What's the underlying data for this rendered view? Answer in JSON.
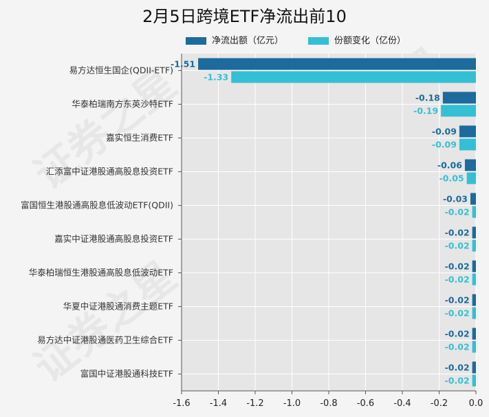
{
  "chart_data": {
    "type": "bar",
    "orientation": "horizontal",
    "title": "2月5日跨境ETF净流出前10",
    "categories": [
      "易方达恒生国企(QDII-ETF)",
      "华泰柏瑞南方东英沙特ETF",
      "嘉实恒生消费ETF",
      "汇添富中证港股通高股息投资ETF",
      "富国恒生港股通高股息低波动ETF(QDII)",
      "嘉实中证港股通高股息投资ETF",
      "华泰柏瑞恒生港股通高股息低波动ETF",
      "华夏中证港股通消费主题ETF",
      "易方达中证港股通医药卫生综合ETF",
      "富国中证港股通科技ETF"
    ],
    "series": [
      {
        "name": "净流出额（亿元）",
        "color": "#1c6b9c",
        "values": [
          -1.51,
          -0.18,
          -0.09,
          -0.06,
          -0.03,
          -0.02,
          -0.02,
          -0.02,
          -0.02,
          -0.02
        ],
        "labels": [
          "-1.51",
          "-0.18",
          "-0.09",
          "-0.06",
          "-0.03",
          "-0.02",
          "-0.02",
          "-0.02",
          "-0.02",
          "-0.02"
        ]
      },
      {
        "name": "份额变化（亿份）",
        "color": "#35bfd4",
        "values": [
          -1.33,
          -0.19,
          -0.09,
          -0.05,
          -0.02,
          -0.02,
          -0.02,
          -0.02,
          -0.02,
          -0.02
        ],
        "labels": [
          "-1.33",
          "-0.19",
          "-0.09",
          "-0.05",
          "-0.02",
          "-0.02",
          "-0.02",
          "-0.02",
          "-0.02",
          "-0.02"
        ]
      }
    ],
    "xlim": [
      -1.6,
      0.0
    ],
    "xticks": [
      -1.6,
      -1.4,
      -1.2,
      -1.0,
      -0.8,
      -0.6,
      -0.4,
      -0.2,
      0.0
    ],
    "xtick_labels": [
      "-1.6",
      "-1.4",
      "-1.2",
      "-1.0",
      "-0.8",
      "-0.6",
      "-0.4",
      "-0.2",
      "0.0"
    ],
    "grid": true,
    "legend_position": "top",
    "background_color": "#e6e6e6"
  },
  "watermark": "证券之星"
}
